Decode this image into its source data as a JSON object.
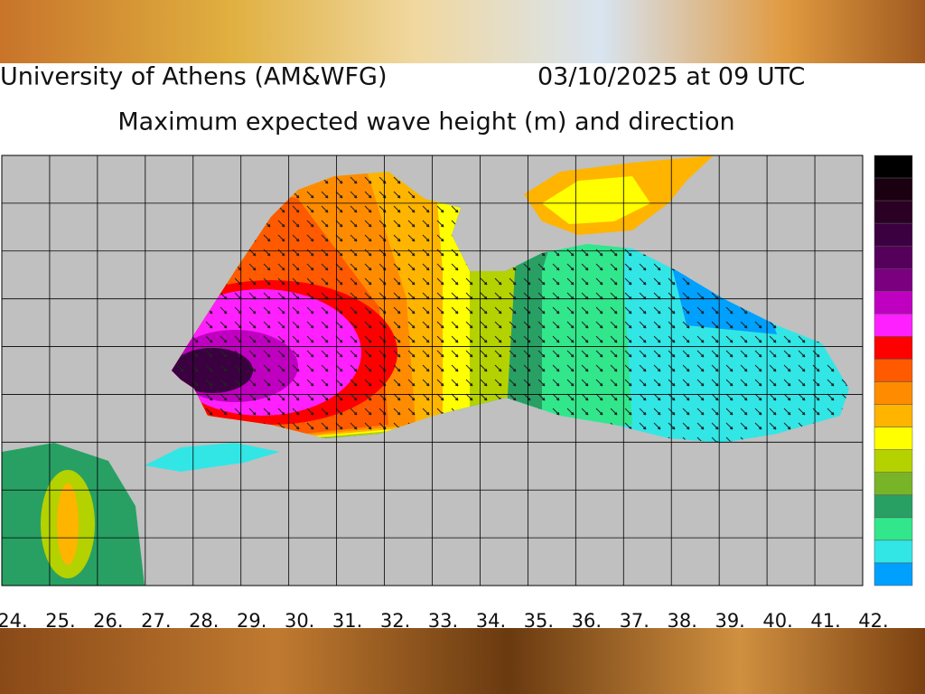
{
  "header": {
    "source": "University of Athens (AM&WFG)",
    "datetime": "03/10/2025 at 09 UTC"
  },
  "title": "Maximum expected wave height (m) and direction",
  "map": {
    "xlim": [
      24,
      42
    ],
    "xticks": [
      {
        "value": 24,
        "label": "24."
      },
      {
        "value": 25,
        "label": "25."
      },
      {
        "value": 26,
        "label": "26."
      },
      {
        "value": 27,
        "label": "27."
      },
      {
        "value": 28,
        "label": "28."
      },
      {
        "value": 29,
        "label": "29."
      },
      {
        "value": 30,
        "label": "30."
      },
      {
        "value": 31,
        "label": "31."
      },
      {
        "value": 32,
        "label": "32."
      },
      {
        "value": 33,
        "label": "33."
      },
      {
        "value": 34,
        "label": "34."
      },
      {
        "value": 35,
        "label": "35."
      },
      {
        "value": 36,
        "label": "36."
      },
      {
        "value": 37,
        "label": "37."
      },
      {
        "value": 38,
        "label": "38."
      },
      {
        "value": 39,
        "label": "39."
      },
      {
        "value": 40,
        "label": "40."
      },
      {
        "value": 41,
        "label": "41."
      },
      {
        "value": 42,
        "label": "42."
      }
    ]
  },
  "colorbar": {
    "colors": [
      "#000000",
      "#1a0010",
      "#2a0025",
      "#3a0040",
      "#55005a",
      "#7a0080",
      "#c000c0",
      "#ff20ff",
      "#ff0000",
      "#ff5a00",
      "#ff8c00",
      "#ffb400",
      "#ffff00",
      "#b4d200",
      "#78b428",
      "#28a064",
      "#32e68c",
      "#32e6e6",
      "#00a0ff"
    ]
  }
}
